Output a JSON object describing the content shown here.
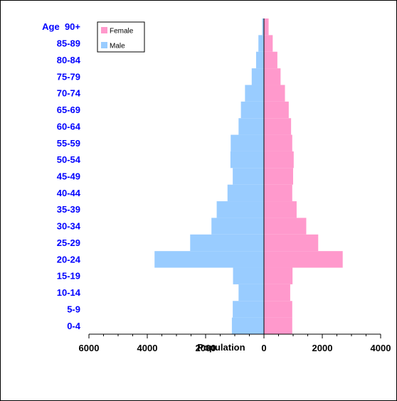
{
  "chart_data": {
    "type": "bar",
    "orientation": "horizontal-diverging",
    "categories": [
      "0-4",
      "5-9",
      "10-14",
      "15-19",
      "20-24",
      "25-29",
      "30-34",
      "35-39",
      "40-44",
      "45-49",
      "50-54",
      "55-59",
      "60-64",
      "65-69",
      "70-74",
      "75-79",
      "80-84",
      "85-89",
      "Age  90+"
    ],
    "series": [
      {
        "name": "Female",
        "color": "#FF99CC",
        "values": [
          970,
          970,
          900,
          980,
          2700,
          1860,
          1450,
          1120,
          970,
          1000,
          1020,
          970,
          930,
          850,
          720,
          570,
          460,
          300,
          160
        ]
      },
      {
        "name": "Male",
        "color": "#99CCFF",
        "values": [
          1100,
          1070,
          870,
          1060,
          3750,
          2530,
          1800,
          1620,
          1250,
          1070,
          1150,
          1140,
          870,
          790,
          650,
          420,
          270,
          190,
          60
        ]
      }
    ],
    "xlabel": "Population",
    "ylabel": "",
    "xlim": [
      -6000,
      4000
    ],
    "x_ticks": [
      "6000",
      "4000",
      "2000",
      "0",
      "2000",
      "4000"
    ],
    "x_tick_values": [
      -6000,
      -4000,
      -2000,
      0,
      2000,
      4000
    ],
    "legend_position": "top-left",
    "grid": false,
    "category_label_color": "#0000FF"
  }
}
